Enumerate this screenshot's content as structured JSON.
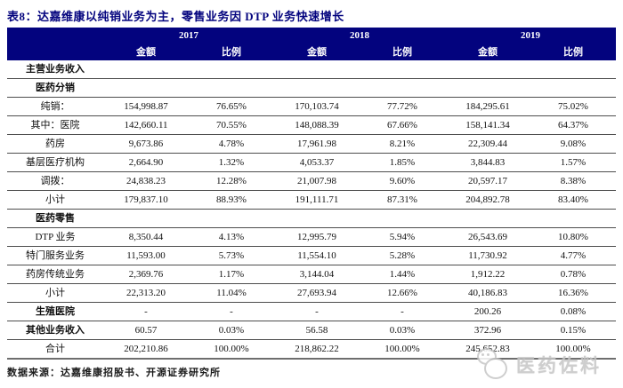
{
  "title": "表8：达嘉维康以纯销业务为主，零售业务因 DTP 业务快速增长",
  "colors": {
    "header_navy": "#03037e",
    "title_navy": "#03037e",
    "row_border": "#4d4d4d",
    "watermark_gray": "#c6c6c6"
  },
  "header": {
    "years": [
      "2017",
      "2018",
      "2019"
    ],
    "subcolumns": [
      "金额",
      "比例"
    ]
  },
  "table": {
    "rows": [
      {
        "label": "主营业务收入",
        "bold": true,
        "values": [
          "",
          "",
          "",
          "",
          "",
          ""
        ]
      },
      {
        "label": "医药分销",
        "bold": true,
        "values": [
          "",
          "",
          "",
          "",
          "",
          ""
        ]
      },
      {
        "label": "纯销：",
        "bold": false,
        "values": [
          "154,998.87",
          "76.65%",
          "170,103.74",
          "77.72%",
          "184,295.61",
          "75.02%"
        ]
      },
      {
        "label": "其中：医院",
        "bold": false,
        "values": [
          "142,660.11",
          "70.55%",
          "148,088.39",
          "67.66%",
          "158,141.34",
          "64.37%"
        ]
      },
      {
        "label": "药房",
        "bold": false,
        "values": [
          "9,673.86",
          "4.78%",
          "17,961.98",
          "8.21%",
          "22,309.44",
          "9.08%"
        ]
      },
      {
        "label": "基层医疗机构",
        "bold": false,
        "values": [
          "2,664.90",
          "1.32%",
          "4,053.37",
          "1.85%",
          "3,844.83",
          "1.57%"
        ]
      },
      {
        "label": "调拨：",
        "bold": false,
        "values": [
          "24,838.23",
          "12.28%",
          "21,007.98",
          "9.60%",
          "20,597.17",
          "8.38%"
        ]
      },
      {
        "label": "小计",
        "bold": false,
        "values": [
          "179,837.10",
          "88.93%",
          "191,111.71",
          "87.31%",
          "204,892.78",
          "83.40%"
        ]
      },
      {
        "label": "医药零售",
        "bold": true,
        "values": [
          "",
          "",
          "",
          "",
          "",
          ""
        ]
      },
      {
        "label": "DTP 业务",
        "bold": false,
        "values": [
          "8,350.44",
          "4.13%",
          "12,995.79",
          "5.94%",
          "26,543.69",
          "10.80%"
        ]
      },
      {
        "label": "特门服务业务",
        "bold": false,
        "values": [
          "11,593.00",
          "5.73%",
          "11,554.10",
          "5.28%",
          "11,730.92",
          "4.77%"
        ]
      },
      {
        "label": "药房传统业务",
        "bold": false,
        "values": [
          "2,369.76",
          "1.17%",
          "3,144.04",
          "1.44%",
          "1,912.22",
          "0.78%"
        ]
      },
      {
        "label": "小计",
        "bold": false,
        "values": [
          "22,313.20",
          "11.04%",
          "27,693.94",
          "12.66%",
          "40,186.83",
          "16.36%"
        ]
      },
      {
        "label": "生殖医院",
        "bold": true,
        "values": [
          "-",
          "-",
          "-",
          "-",
          "200.26",
          "0.08%"
        ]
      },
      {
        "label": "其他业务收入",
        "bold": true,
        "values": [
          "60.57",
          "0.03%",
          "56.58",
          "0.03%",
          "372.96",
          "0.15%"
        ]
      },
      {
        "label": "合计",
        "bold": false,
        "values": [
          "202,210.86",
          "100.00%",
          "218,862.22",
          "100.00%",
          "245,652.83",
          "100.00%"
        ]
      }
    ]
  },
  "source": "数据来源：达嘉维康招股书、开源证券研究所",
  "watermark": {
    "text": "医药佐料",
    "logo": "chick-doodle-icon"
  }
}
